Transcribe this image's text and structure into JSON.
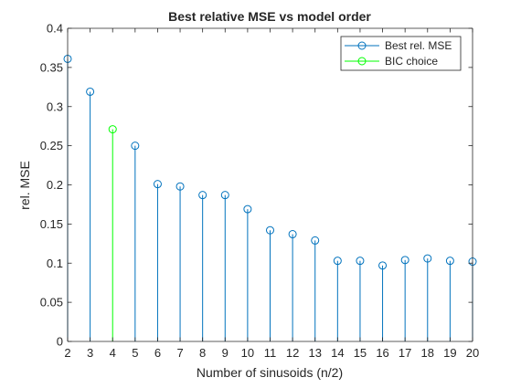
{
  "chart_data": {
    "type": "stem",
    "title": "Best relative MSE vs model order",
    "xlabel": "Number of sinusoids (n/2)",
    "ylabel": "rel. MSE",
    "xlim": [
      2,
      20
    ],
    "ylim": [
      0,
      0.4
    ],
    "xticks": [
      2,
      3,
      4,
      5,
      6,
      7,
      8,
      9,
      10,
      11,
      12,
      13,
      14,
      15,
      16,
      17,
      18,
      19,
      20
    ],
    "yticks": [
      0,
      0.05,
      0.1,
      0.15,
      0.2,
      0.25,
      0.3,
      0.35,
      0.4
    ],
    "ytick_labels": [
      "0",
      "0.05",
      "0.1",
      "0.15",
      "0.2",
      "0.25",
      "0.3",
      "0.35",
      "0.4"
    ],
    "grid": false,
    "legend_position": "top-right",
    "series": [
      {
        "name": "Best rel. MSE",
        "color": "#0072bd",
        "marker": "circle",
        "x": [
          2,
          3,
          5,
          6,
          7,
          8,
          9,
          10,
          11,
          12,
          13,
          14,
          15,
          16,
          17,
          18,
          19,
          20
        ],
        "y": [
          0.361,
          0.319,
          0.25,
          0.201,
          0.198,
          0.187,
          0.187,
          0.169,
          0.142,
          0.137,
          0.129,
          0.103,
          0.103,
          0.097,
          0.104,
          0.106,
          0.103,
          0.102
        ]
      },
      {
        "name": "BIC choice",
        "color": "#00ff00",
        "marker": "circle",
        "x": [
          4
        ],
        "y": [
          0.271
        ]
      }
    ]
  }
}
